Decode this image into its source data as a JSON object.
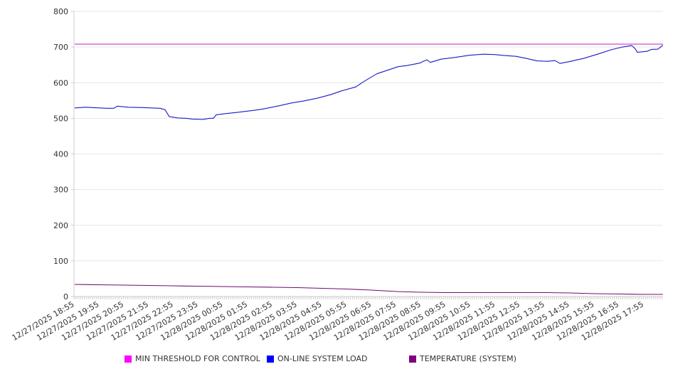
{
  "chart_data": {
    "type": "line",
    "title": "",
    "xlabel": "",
    "ylabel": "",
    "ylim": [
      0,
      800
    ],
    "yticks": [
      "0",
      "100",
      "200",
      "300",
      "400",
      "500",
      "600",
      "700",
      "800"
    ],
    "grid": true,
    "legend_placement": "bottom",
    "x_unit": "hours since 12/27/2025 18:55",
    "x_range": [
      0,
      23.76
    ],
    "x_tick_labels": [
      "12/27/2025 18:55",
      "12/27/2025 19:55",
      "12/27/2025 20:55",
      "12/27/2025 21:55",
      "12/27/2025 22:55",
      "12/27/2025 23:55",
      "12/28/2025 00:55",
      "12/28/2025 01:55",
      "12/28/2025 02:55",
      "12/28/2025 03:55",
      "12/28/2025 04:55",
      "12/28/2025 05:55",
      "12/28/2025 06:55",
      "12/28/2025 07:55",
      "12/28/2025 08:55",
      "12/28/2025 09:55",
      "12/28/2025 10:55",
      "12/28/2025 11:55",
      "12/28/2025 12:55",
      "12/28/2025 13:55",
      "12/28/2025 14:55",
      "12/28/2025 15:55",
      "12/28/2025 16:55",
      "12/28/2025 17:55"
    ],
    "series": [
      {
        "name": "MIN THRESHOLD FOR CONTROL",
        "color": "#ff00ff",
        "line_color": "#cc33cc",
        "x": [
          0,
          23.76
        ],
        "values": [
          708,
          708
        ]
      },
      {
        "name": "ON-LINE SYSTEM LOAD",
        "color": "#0000ff",
        "line_color": "#1a1acc",
        "x": [
          0,
          0.43,
          1.29,
          1.58,
          1.72,
          2.16,
          2.73,
          3.45,
          3.65,
          3.82,
          4.17,
          4.51,
          4.74,
          5.17,
          5.46,
          5.6,
          5.72,
          6.18,
          6.47,
          7.21,
          7.61,
          8.25,
          8.76,
          9.28,
          9.77,
          10.32,
          10.78,
          11.35,
          11.7,
          12.21,
          12.64,
          13.07,
          13.42,
          13.94,
          14.08,
          14.22,
          14.37,
          14.8,
          15.37,
          15.95,
          16.52,
          16.95,
          17.39,
          17.82,
          18.25,
          18.68,
          19.11,
          19.4,
          19.6,
          19.97,
          20.55,
          21.12,
          21.7,
          22.13,
          22.5,
          22.64,
          22.73,
          23.13,
          23.28,
          23.56,
          23.76
        ],
        "values": [
          529,
          531,
          528,
          528,
          534,
          531,
          530,
          528,
          524,
          505,
          501,
          500,
          498,
          497,
          500,
          500,
          510,
          514,
          516,
          522,
          526,
          535,
          543,
          549,
          556,
          566,
          577,
          588,
          604,
          625,
          635,
          645,
          648,
          655,
          660,
          664,
          657,
          666,
          671,
          677,
          680,
          679,
          676,
          674,
          668,
          661,
          660,
          662,
          654,
          659,
          668,
          680,
          693,
          700,
          704,
          695,
          685,
          688,
          693,
          694,
          705
        ]
      },
      {
        "name": "TEMPERATURE (SYSTEM)",
        "color": "#800080",
        "line_color": "#6b0f6b",
        "x": [
          0,
          1,
          2,
          3,
          4,
          5,
          6,
          7,
          8,
          9,
          10,
          11,
          12,
          13,
          14,
          15,
          16,
          17,
          18,
          19,
          20,
          21,
          22,
          23,
          23.76
        ],
        "values": [
          34,
          33,
          32,
          31,
          30,
          29,
          28,
          27,
          26,
          25,
          23,
          21,
          18,
          14,
          12,
          11,
          11,
          11,
          11,
          11,
          10,
          8,
          7,
          6,
          6
        ]
      }
    ]
  }
}
